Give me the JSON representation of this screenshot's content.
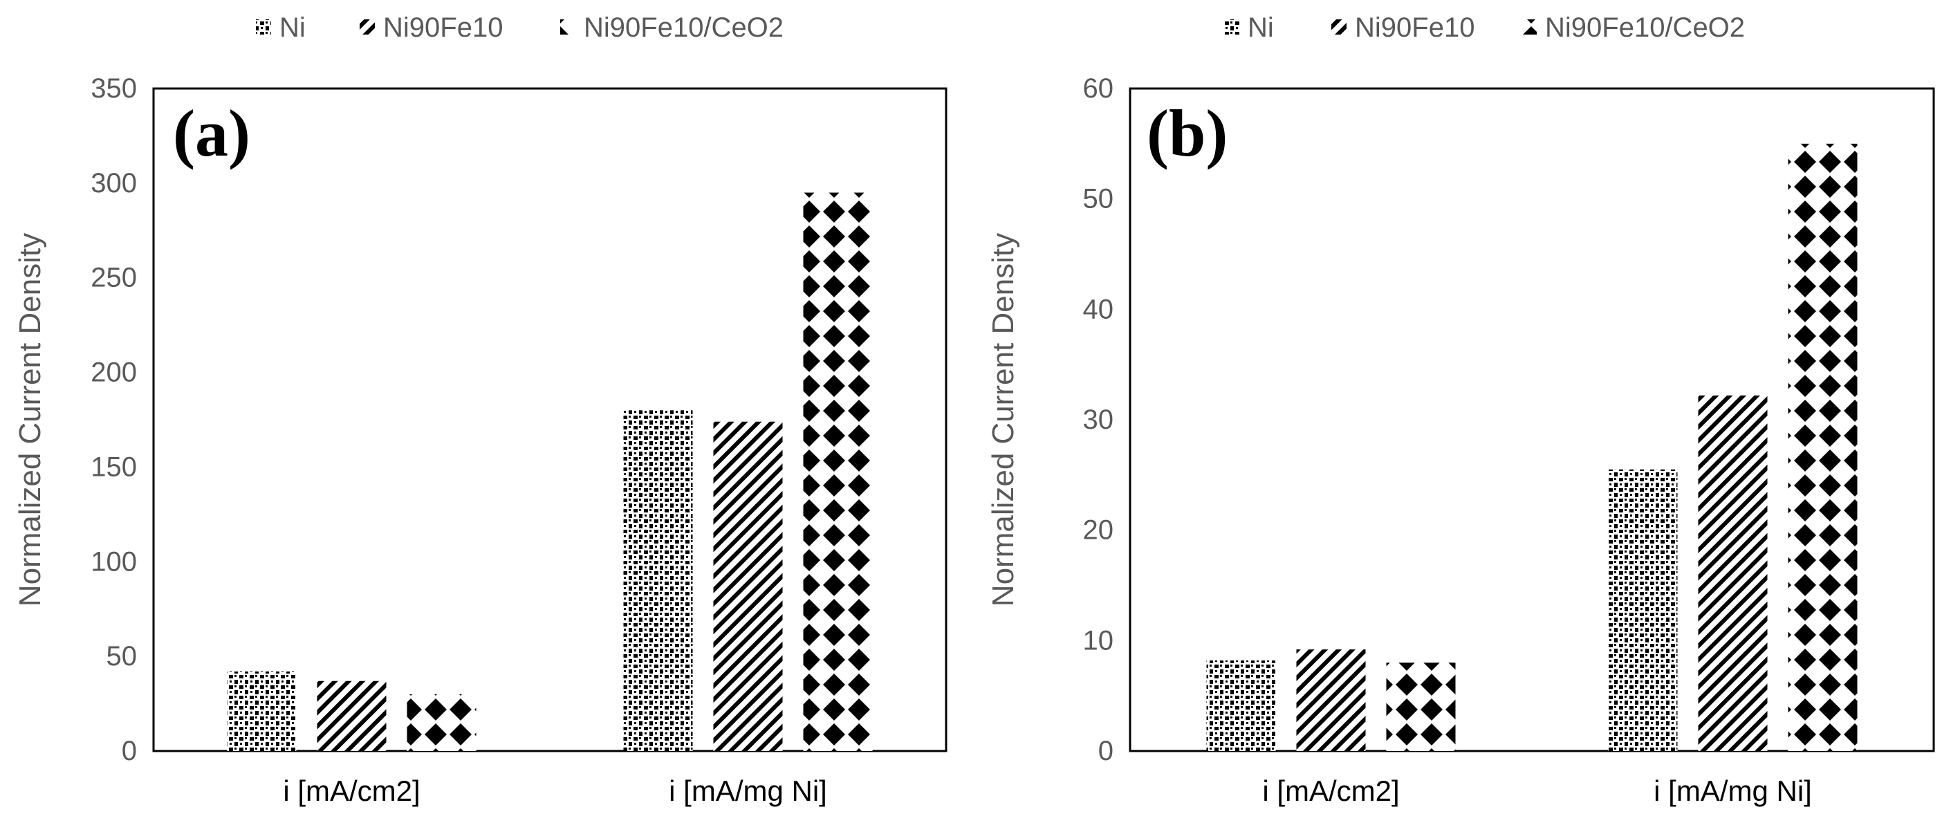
{
  "chart_data": [
    {
      "type": "bar",
      "panel_label": "(a)",
      "ylabel": "Normalized Current  Density",
      "xlabel": "",
      "ylim": [
        0,
        350
      ],
      "yticks": [
        "0",
        "50",
        "100",
        "150",
        "200",
        "250",
        "300",
        "350"
      ],
      "legend_position": "top",
      "categories": [
        "i [mA/cm2]",
        "i [mA/mg Ni]"
      ],
      "series": [
        {
          "name": "Ni",
          "values": [
            42,
            180
          ],
          "pattern": "dots"
        },
        {
          "name": "Ni90Fe10",
          "values": [
            37,
            174
          ],
          "pattern": "diagonal"
        },
        {
          "name": "Ni90Fe10/CeO2",
          "values": [
            30,
            295
          ],
          "pattern": "diamond"
        }
      ]
    },
    {
      "type": "bar",
      "panel_label": "(b)",
      "ylabel": "Normalized Current  Density",
      "xlabel": "",
      "ylim": [
        0,
        60
      ],
      "yticks": [
        "0",
        "10",
        "20",
        "30",
        "40",
        "50",
        "60"
      ],
      "legend_position": "top",
      "categories": [
        "i [mA/cm2]",
        "i [mA/mg Ni]"
      ],
      "series": [
        {
          "name": "Ni",
          "values": [
            8.2,
            25.5
          ],
          "pattern": "dots"
        },
        {
          "name": "Ni90Fe10",
          "values": [
            9.2,
            32.2
          ],
          "pattern": "diagonal"
        },
        {
          "name": "Ni90Fe10/CeO2",
          "values": [
            8.0,
            55.0
          ],
          "pattern": "diamond"
        }
      ]
    }
  ],
  "colors": {
    "bar_ink": "#000000",
    "axis": "#000000",
    "text": "#595959",
    "background": "#ffffff"
  }
}
